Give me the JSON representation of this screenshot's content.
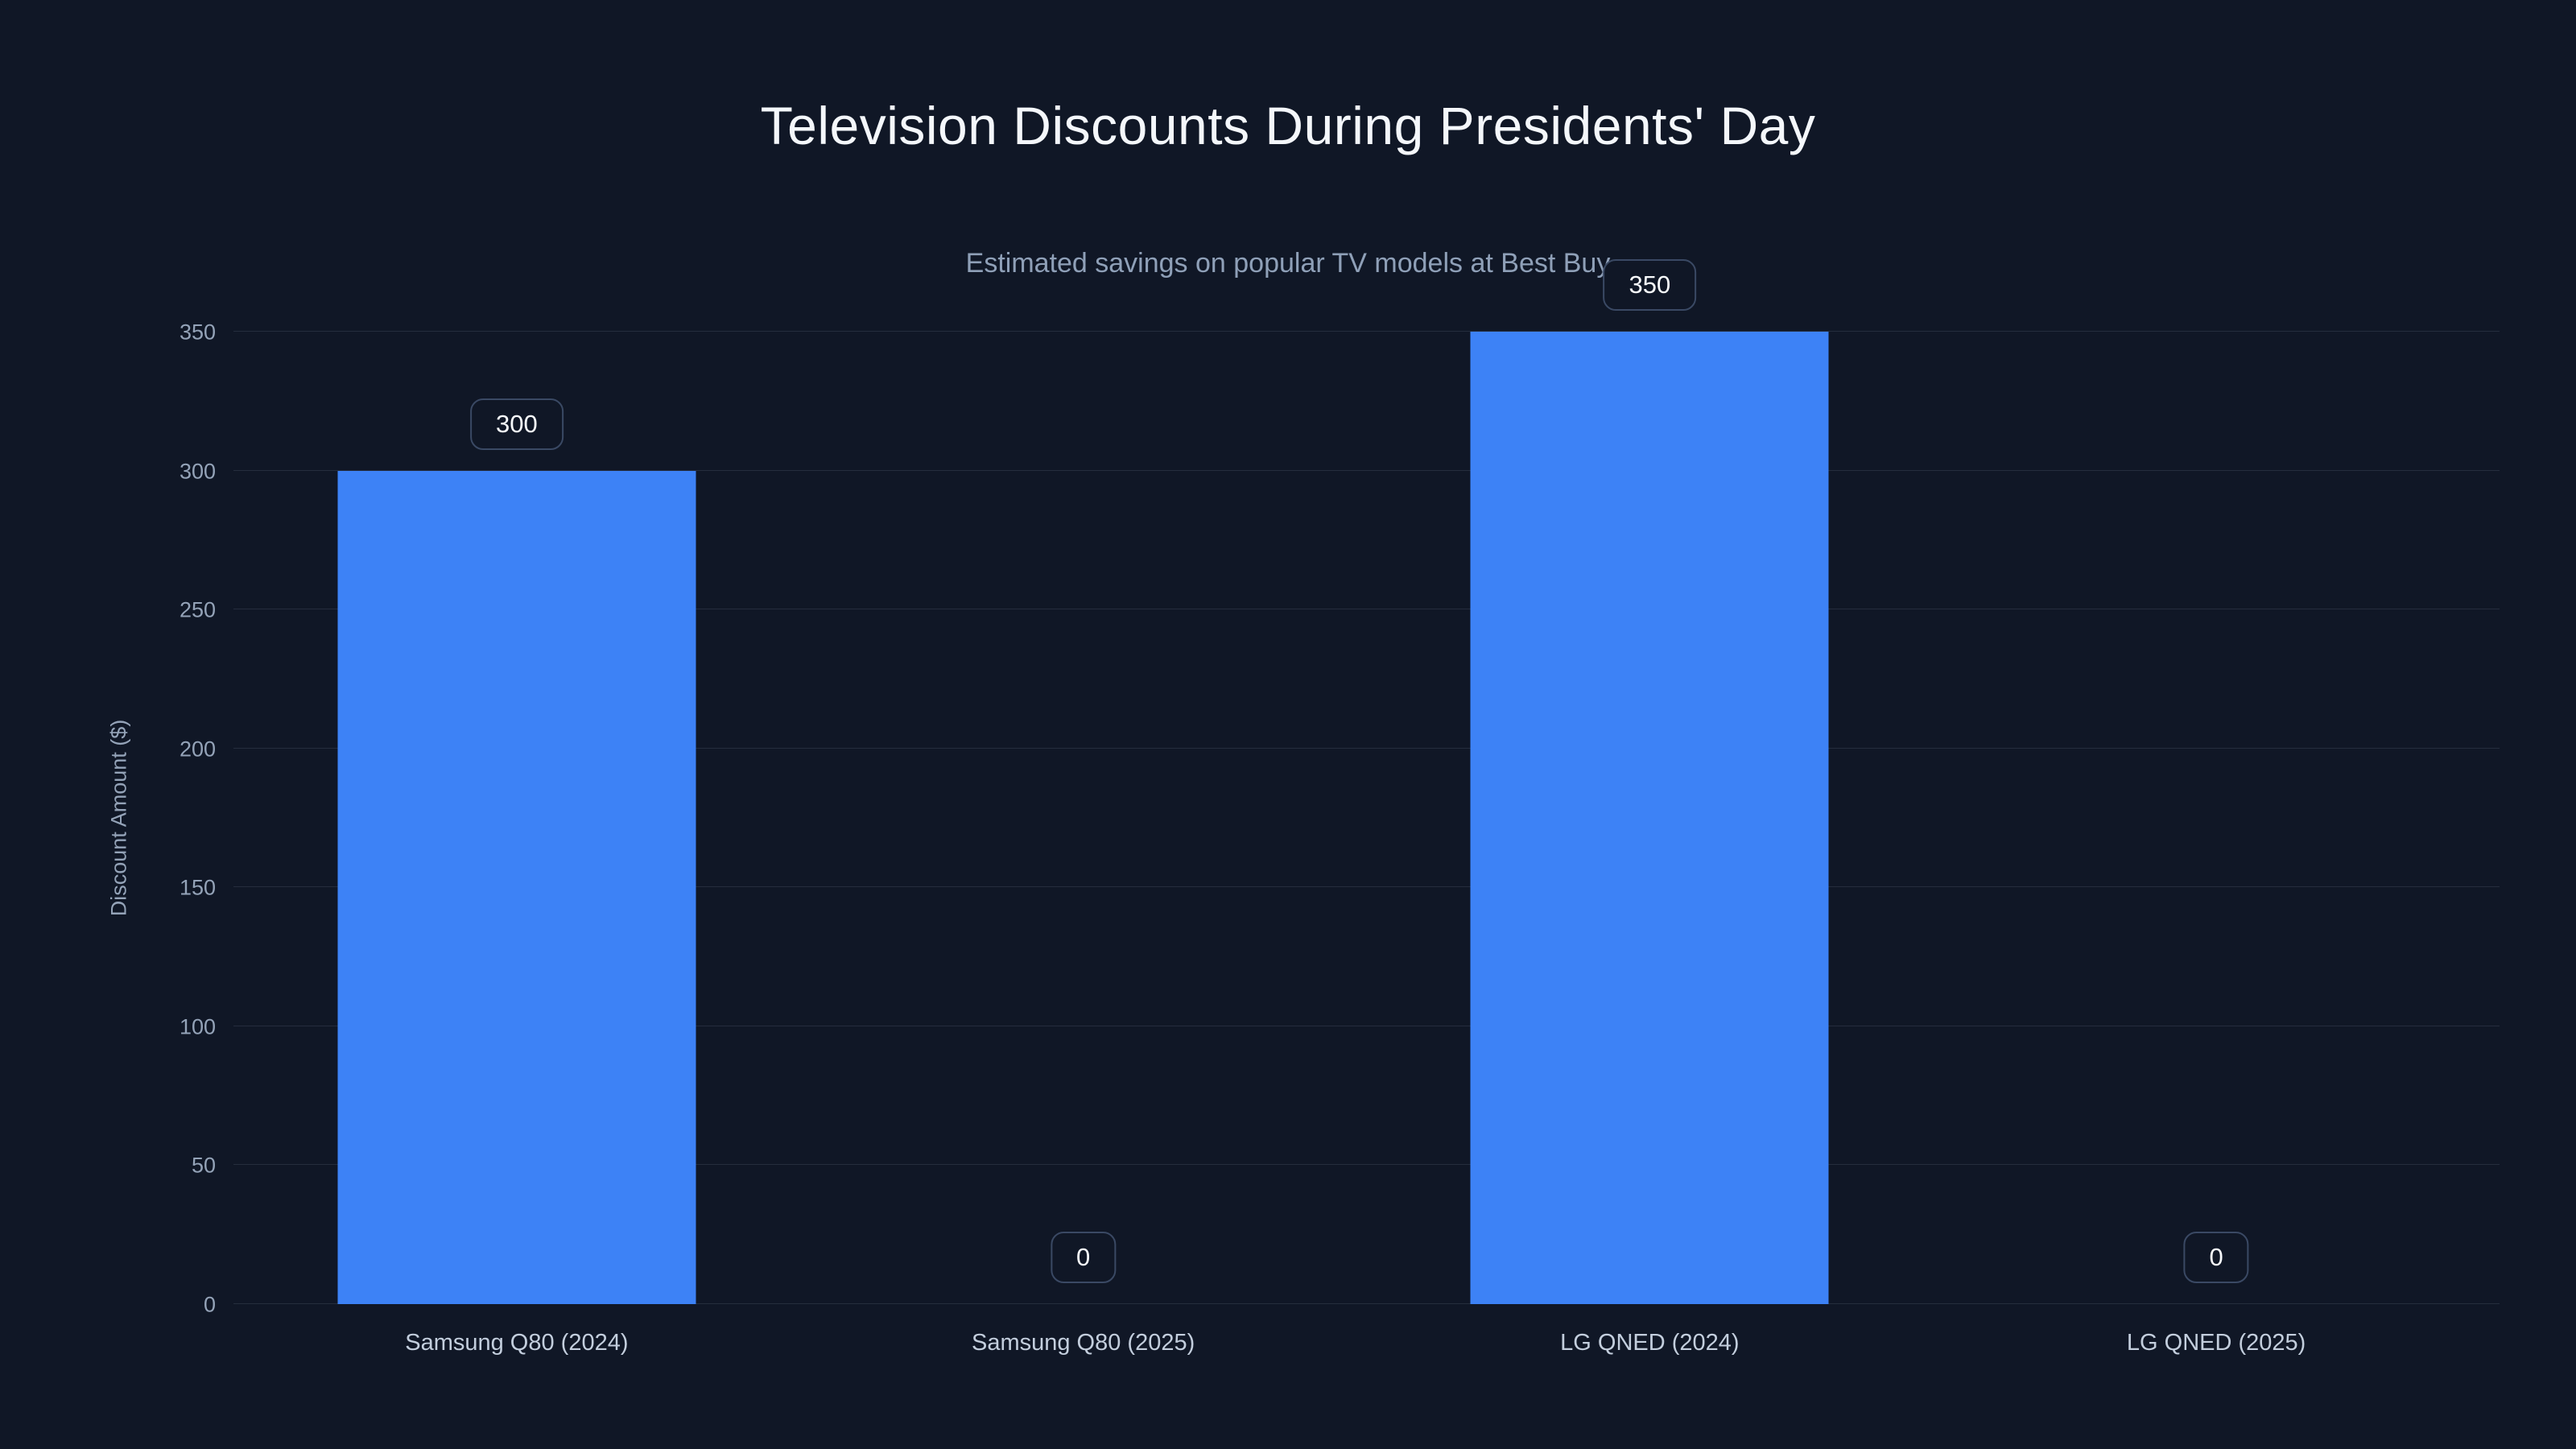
{
  "page": {
    "background_color": "#101726",
    "accent_color": "#3d82f6"
  },
  "header": {
    "title": "Television Discounts During Presidents' Day",
    "subtitle": "Estimated savings on popular TV models at Best Buy"
  },
  "chart_data": {
    "type": "bar",
    "title": "Television Discounts During Presidents' Day",
    "subtitle": "Estimated savings on popular TV models at Best Buy",
    "categories": [
      "Samsung Q80 (2024)",
      "Samsung Q80 (2025)",
      "LG QNED (2024)",
      "LG QNED (2025)"
    ],
    "values": [
      300,
      0,
      350,
      0
    ],
    "data_labels": [
      "300",
      "0",
      "350",
      "0"
    ],
    "xlabel": "",
    "ylabel": "Discount Amount ($)",
    "ylim": [
      0,
      350
    ],
    "yticks": [
      0,
      50,
      100,
      150,
      200,
      250,
      300,
      350
    ],
    "grid": true,
    "legend": "none",
    "bar_color": "#3d82f6"
  }
}
